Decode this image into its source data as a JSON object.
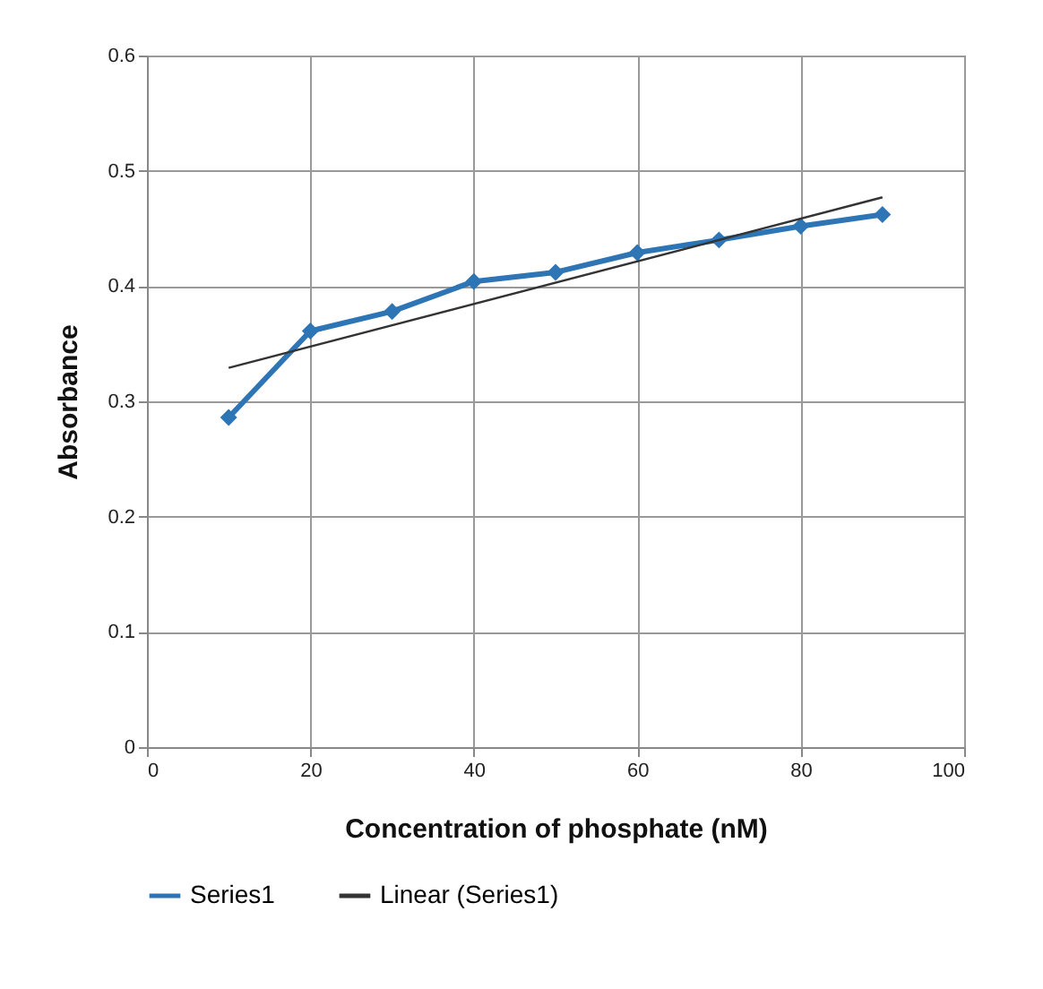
{
  "chart_data": {
    "type": "line",
    "xlabel": "Concentration of phosphate (nM)",
    "ylabel": "Absorbance",
    "xlim": [
      0,
      100
    ],
    "xticks": [
      0,
      20,
      40,
      60,
      80,
      100
    ],
    "ylim": [
      0,
      0.6
    ],
    "yticks": [
      0,
      0.1,
      0.2,
      0.3,
      0.4,
      0.5,
      0.6
    ],
    "grid": true,
    "legend": "bottom",
    "series": [
      {
        "name": "Series1",
        "color": "#2e75b6",
        "marker": "diamond",
        "x": [
          10,
          20,
          30,
          40,
          50,
          60,
          70,
          80,
          90
        ],
        "values": [
          0.286,
          0.361,
          0.378,
          0.404,
          0.412,
          0.429,
          0.44,
          0.452,
          0.462
        ]
      },
      {
        "name": "Linear (Series1)",
        "color": "#333333",
        "marker": "none",
        "x": [
          10,
          90
        ],
        "values": [
          0.329,
          0.477
        ]
      }
    ]
  }
}
